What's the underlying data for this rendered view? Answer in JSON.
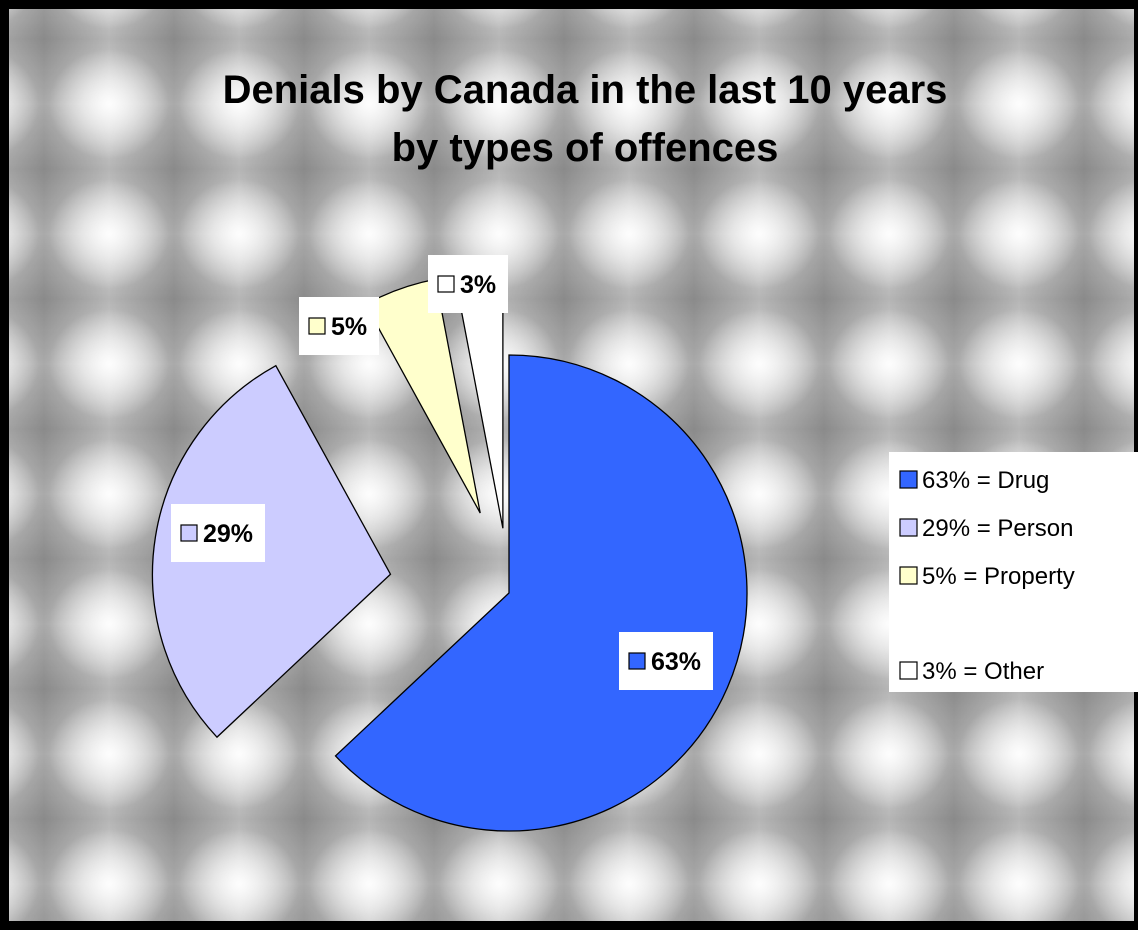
{
  "chart_data": {
    "type": "pie",
    "title": [
      "Denials by Canada in the last 10 years",
      "by types of offences"
    ],
    "slices": [
      {
        "value": 63,
        "label": "63%",
        "legend": "63% = Drug",
        "color": "#3366FF"
      },
      {
        "value": 29,
        "label": "29%",
        "legend": "29% = Person",
        "color": "#CCCCFF"
      },
      {
        "value": 5,
        "label": "5%",
        "legend": "5% = Property",
        "color": "#FFFFCC"
      },
      {
        "value": 3,
        "label": "3%",
        "legend": "3% = Other",
        "color": "#FFFFFF"
      }
    ],
    "legend_position": "right",
    "exploded": true
  }
}
